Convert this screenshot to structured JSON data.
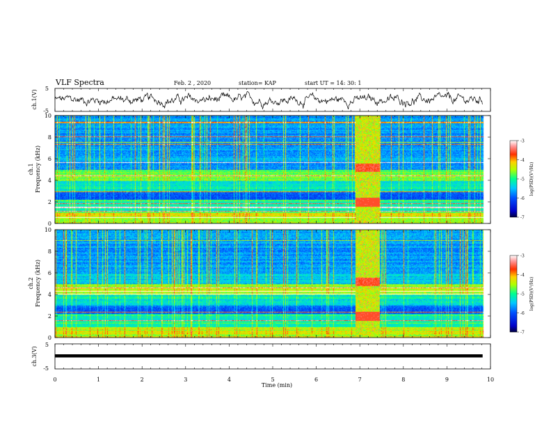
{
  "header": {
    "title": "VLF Spectra",
    "date": "Feb. 2  , 2020",
    "station": "station= KAP",
    "start": "start  UT  =   14: 30: 1"
  },
  "chart_data": [
    {
      "type": "line",
      "panel": "ch1-waveform",
      "ylabel": "ch.1(V)",
      "ylim": [
        -5,
        5
      ],
      "yticks": [
        "5",
        "-5"
      ],
      "xlim": [
        0,
        10
      ],
      "description_series": "noisy waveform, amplitude roughly -3 to +3 V"
    },
    {
      "type": "heatmap",
      "panel": "ch1-spectrogram",
      "ylabel": "ch.1\nFrequency (kHz)",
      "ylabel_lines": [
        "ch.1",
        "Frequency (kHz)"
      ],
      "ylim": [
        0,
        10
      ],
      "yticks": [
        "0",
        "2",
        "4",
        "6",
        "8",
        "10"
      ],
      "xlim": [
        0,
        10
      ],
      "colorbar": {
        "label": "log(PSD)(V²/Hz)",
        "ticks": [
          "-3",
          "-4",
          "-5",
          "-6",
          "-7"
        ],
        "range": [
          -7,
          -3
        ]
      },
      "burst_window_min": [
        6.9,
        7.45
      ]
    },
    {
      "type": "heatmap",
      "panel": "ch2-spectrogram",
      "ylabel_lines": [
        "ch.2",
        "Frequency (kHz)"
      ],
      "ylim": [
        0,
        10
      ],
      "yticks": [
        "0",
        "2",
        "4",
        "6",
        "8",
        "10"
      ],
      "xlim": [
        0,
        10
      ],
      "colorbar": {
        "label": "log(PSD)(V²/Hz)",
        "ticks": [
          "-3",
          "-4",
          "-5",
          "-6",
          "-7"
        ],
        "range": [
          -7,
          -3
        ]
      },
      "burst_window_min": [
        6.9,
        7.45
      ]
    },
    {
      "type": "line",
      "panel": "ch3-waveform",
      "ylabel": "ch.3(V)",
      "ylim": [
        -5,
        5
      ],
      "yticks": [
        "5",
        "-5"
      ],
      "xlim": [
        0,
        10
      ],
      "constant_value": -1,
      "xlabel": "Time  (min)",
      "xticks": [
        "0",
        "1",
        "2",
        "3",
        "4",
        "5",
        "6",
        "7",
        "8",
        "9",
        "10"
      ]
    }
  ]
}
